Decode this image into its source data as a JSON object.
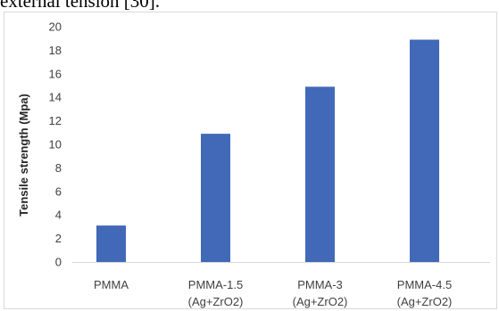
{
  "caption": "external tension [30].",
  "chart_data": {
    "type": "bar",
    "title": "",
    "xlabel": "",
    "ylabel": "Tensile strength (Mpa)",
    "ylim": [
      0,
      20
    ],
    "yticks": [
      0,
      2,
      4,
      6,
      8,
      10,
      12,
      14,
      16,
      18,
      20
    ],
    "categories": [
      [
        "PMMA"
      ],
      [
        "PMMA-1.5",
        "(Ag+ZrO2)"
      ],
      [
        "PMMA-3",
        "(Ag+ZrO2)"
      ],
      [
        "PMMA-4.5",
        "(Ag+ZrO2)"
      ]
    ],
    "values": [
      3.1,
      10.9,
      14.9,
      18.9
    ],
    "bar_color": "#4169b8",
    "grid": false,
    "legend": "none"
  }
}
